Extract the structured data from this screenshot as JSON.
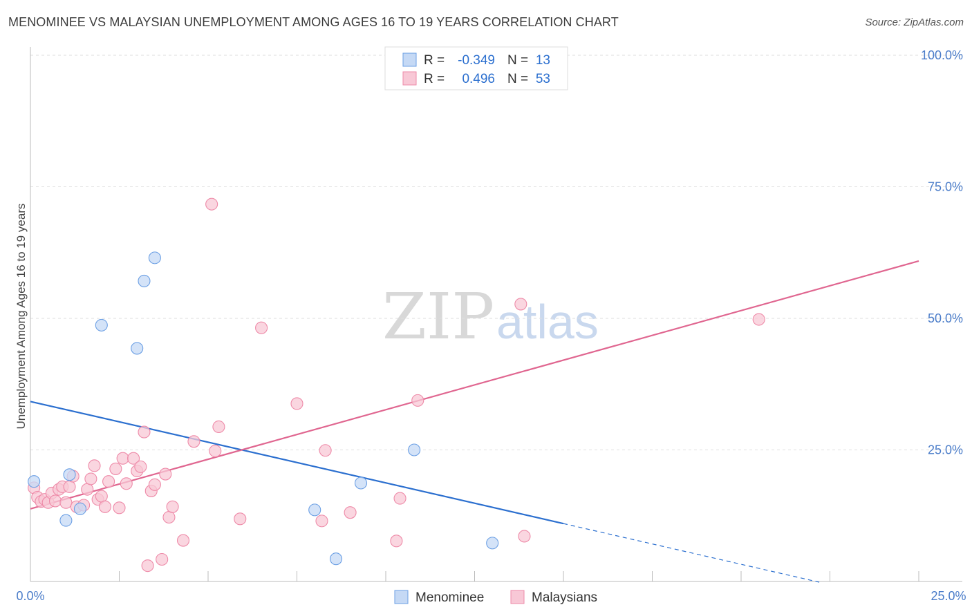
{
  "chart_data": {
    "type": "scatter",
    "title": "MENOMINEE VS MALAYSIAN UNEMPLOYMENT AMONG AGES 16 TO 19 YEARS CORRELATION CHART",
    "source": "Source: ZipAtlas.com",
    "xlabel": "",
    "ylabel": "Unemployment Among Ages 16 to 19 years",
    "xlim": [
      0,
      25
    ],
    "ylim": [
      0,
      100
    ],
    "x_tick_labels": [
      "0.0%",
      "25.0%"
    ],
    "y_ticks": [
      25,
      50,
      75,
      100
    ],
    "y_tick_labels": [
      "25.0%",
      "50.0%",
      "75.0%",
      "100.0%"
    ],
    "watermark": {
      "part1": "ZIP",
      "part2": "atlas"
    },
    "legend_stats": [
      {
        "r_label": "R =",
        "r_value": "-0.349",
        "n_label": "N =",
        "n_value": "13"
      },
      {
        "r_label": "R =",
        "r_value": "0.496",
        "n_label": "N =",
        "n_value": "53"
      }
    ],
    "series": [
      {
        "name": "Menominee",
        "color": "#6b9fe4",
        "fill": "#c5d9f5",
        "trend_color": "#2b6fcf",
        "trend": {
          "x0": 0,
          "y0": 34.2,
          "x1": 15.0,
          "y1": 11.0,
          "x_dash_end": 22.2
        },
        "points": [
          {
            "x": 0.1,
            "y": 19.0
          },
          {
            "x": 1.1,
            "y": 20.3
          },
          {
            "x": 1.0,
            "y": 11.6
          },
          {
            "x": 1.4,
            "y": 13.8
          },
          {
            "x": 2.0,
            "y": 48.7
          },
          {
            "x": 3.0,
            "y": 44.3
          },
          {
            "x": 3.2,
            "y": 57.1
          },
          {
            "x": 3.5,
            "y": 61.5
          },
          {
            "x": 8.0,
            "y": 13.6
          },
          {
            "x": 8.6,
            "y": 4.3
          },
          {
            "x": 9.3,
            "y": 18.7
          },
          {
            "x": 10.8,
            "y": 25.0
          },
          {
            "x": 13.0,
            "y": 7.3
          }
        ]
      },
      {
        "name": "Malaysians",
        "color": "#ee8aa8",
        "fill": "#f8c8d6",
        "trend_color": "#e06690",
        "trend": {
          "x0": 0,
          "y0": 13.8,
          "x1": 25.0,
          "y1": 60.9
        },
        "points": [
          {
            "x": 0.1,
            "y": 17.8
          },
          {
            "x": 0.2,
            "y": 16.0
          },
          {
            "x": 0.3,
            "y": 15.2
          },
          {
            "x": 0.4,
            "y": 15.6
          },
          {
            "x": 0.5,
            "y": 15.0
          },
          {
            "x": 0.6,
            "y": 16.8
          },
          {
            "x": 0.7,
            "y": 15.3
          },
          {
            "x": 0.8,
            "y": 17.5
          },
          {
            "x": 0.9,
            "y": 18.0
          },
          {
            "x": 1.0,
            "y": 15.0
          },
          {
            "x": 1.1,
            "y": 18.0
          },
          {
            "x": 1.2,
            "y": 20.0
          },
          {
            "x": 1.3,
            "y": 14.2
          },
          {
            "x": 1.5,
            "y": 14.5
          },
          {
            "x": 1.6,
            "y": 17.5
          },
          {
            "x": 1.7,
            "y": 19.5
          },
          {
            "x": 1.8,
            "y": 22.0
          },
          {
            "x": 1.9,
            "y": 15.6
          },
          {
            "x": 2.0,
            "y": 16.2
          },
          {
            "x": 2.1,
            "y": 14.2
          },
          {
            "x": 2.2,
            "y": 19.0
          },
          {
            "x": 2.4,
            "y": 21.4
          },
          {
            "x": 2.5,
            "y": 14.0
          },
          {
            "x": 2.6,
            "y": 23.4
          },
          {
            "x": 2.7,
            "y": 18.6
          },
          {
            "x": 2.9,
            "y": 23.4
          },
          {
            "x": 3.0,
            "y": 21.0
          },
          {
            "x": 3.1,
            "y": 21.8
          },
          {
            "x": 3.2,
            "y": 28.4
          },
          {
            "x": 3.3,
            "y": 3.0
          },
          {
            "x": 3.4,
            "y": 17.2
          },
          {
            "x": 3.5,
            "y": 18.4
          },
          {
            "x": 3.7,
            "y": 4.2
          },
          {
            "x": 3.8,
            "y": 20.4
          },
          {
            "x": 3.9,
            "y": 12.2
          },
          {
            "x": 4.0,
            "y": 14.2
          },
          {
            "x": 4.3,
            "y": 7.8
          },
          {
            "x": 4.6,
            "y": 26.6
          },
          {
            "x": 5.1,
            "y": 71.7
          },
          {
            "x": 5.2,
            "y": 24.8
          },
          {
            "x": 5.3,
            "y": 29.4
          },
          {
            "x": 5.9,
            "y": 11.9
          },
          {
            "x": 6.5,
            "y": 48.2
          },
          {
            "x": 7.5,
            "y": 33.8
          },
          {
            "x": 8.2,
            "y": 11.5
          },
          {
            "x": 8.3,
            "y": 24.9
          },
          {
            "x": 9.0,
            "y": 13.1
          },
          {
            "x": 10.3,
            "y": 7.7
          },
          {
            "x": 10.4,
            "y": 15.8
          },
          {
            "x": 10.9,
            "y": 34.4
          },
          {
            "x": 13.8,
            "y": 52.7
          },
          {
            "x": 13.9,
            "y": 8.6
          },
          {
            "x": 20.5,
            "y": 49.8
          }
        ]
      }
    ]
  }
}
